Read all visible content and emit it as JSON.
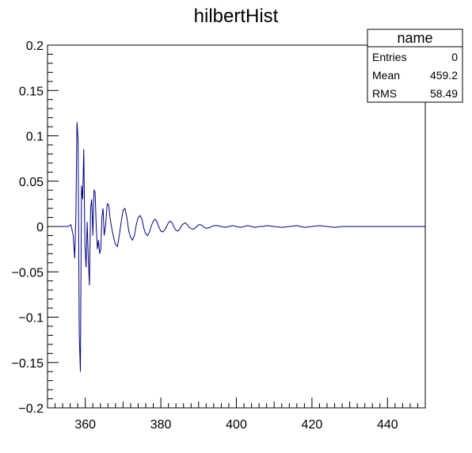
{
  "chart_data": {
    "type": "line",
    "title": "hilbertHist",
    "xlabel": "",
    "ylabel": "",
    "xlim": [
      350,
      450
    ],
    "ylim": [
      -0.2,
      0.2
    ],
    "x_ticks": [
      360,
      380,
      400,
      420,
      440
    ],
    "x_tick_labels": [
      "360",
      "380",
      "400",
      "420",
      "440"
    ],
    "y_ticks": [
      0.2,
      0.15,
      0.1,
      0.05,
      0,
      -0.05,
      -0.1,
      -0.15,
      -0.2
    ],
    "y_tick_labels": [
      "0.2",
      "0.15",
      "0.1",
      "0.05",
      "0",
      "−0.05",
      "−0.1",
      "−0.15",
      "−0.2"
    ],
    "grid": false,
    "line_color": "#000080",
    "series": [
      {
        "x": [
          350,
          355.5,
          356.2,
          356.8,
          357.2,
          357.5,
          357.8,
          358.1,
          358.4,
          358.7,
          359.0,
          359.3,
          359.6,
          359.9,
          360.2,
          360.5,
          360.8,
          361.1,
          361.4,
          361.7,
          362.0,
          362.3,
          362.6,
          362.9,
          363.2,
          363.5,
          363.8,
          364.1,
          364.4,
          364.7,
          365.0,
          365.4,
          365.8,
          366.2,
          366.6,
          367.0,
          367.5,
          368.0,
          368.5,
          369.0,
          369.5,
          370.0,
          370.5,
          371.0,
          371.5,
          372.0,
          372.5,
          373.0,
          373.5,
          374.0,
          374.5,
          375.0,
          375.5,
          376.0,
          376.5,
          377.0,
          377.5,
          378.0,
          378.5,
          379.0,
          379.5,
          380.0,
          380.5,
          381.0,
          381.5,
          382.0,
          382.5,
          383.0,
          383.5,
          384.0,
          384.5,
          385.0,
          385.5,
          386.0,
          386.5,
          387.0,
          387.5,
          388.0,
          388.5,
          389.0,
          389.5,
          390.0,
          390.5,
          391.0,
          391.5,
          392.0,
          393.0,
          394.0,
          395.0,
          396.0,
          397.0,
          398.0,
          399.0,
          400.0,
          401.0,
          402.0,
          403.0,
          404.0,
          405.0,
          406.0,
          407.0,
          408.0,
          410.0,
          412.0,
          414.0,
          416.0,
          418.0,
          420.0,
          422.0,
          424.0,
          426.0,
          428.0,
          428.5,
          450
        ],
        "y": [
          0,
          0,
          0.002,
          -0.01,
          -0.035,
          0.01,
          0.115,
          0.095,
          -0.12,
          -0.16,
          0.045,
          0.03,
          0.085,
          -0.02,
          -0.045,
          0.005,
          -0.035,
          -0.065,
          0.02,
          0.03,
          -0.01,
          0.04,
          0.038,
          0.0,
          -0.025,
          -0.015,
          -0.03,
          -0.025,
          0.01,
          0.02,
          -0.01,
          0.002,
          0.025,
          0.024,
          0.008,
          -0.002,
          -0.012,
          -0.02,
          -0.022,
          -0.01,
          0.005,
          0.018,
          0.02,
          0.01,
          -0.005,
          -0.012,
          -0.015,
          -0.01,
          0.002,
          0.01,
          0.012,
          0.008,
          -0.002,
          -0.008,
          -0.01,
          -0.006,
          0.001,
          0.006,
          0.008,
          0.005,
          -0.001,
          -0.005,
          -0.006,
          -0.004,
          0.0,
          0.004,
          0.006,
          0.004,
          -0.001,
          -0.004,
          -0.005,
          -0.003,
          0.001,
          0.003,
          0.004,
          0.002,
          -0.001,
          -0.002,
          -0.003,
          -0.002,
          0.0,
          0.002,
          0.002,
          0.001,
          -0.001,
          -0.002,
          -0.001,
          0.001,
          0.001,
          0.0,
          -0.001,
          0.0,
          0.001,
          0.0,
          -0.001,
          0.0,
          0.001,
          0.0,
          -0.001,
          0.0,
          0.0,
          0.001,
          0.0,
          -0.001,
          0.0,
          0.001,
          -0.001,
          0.0,
          0.001,
          0.0,
          -0.001,
          0.0,
          0.0,
          0
        ]
      }
    ]
  },
  "stats_box": {
    "title": "name",
    "rows": [
      {
        "label": "Entries",
        "value": "0"
      },
      {
        "label": "Mean",
        "value": "459.2"
      },
      {
        "label": "RMS",
        "value": "58.49"
      }
    ]
  }
}
